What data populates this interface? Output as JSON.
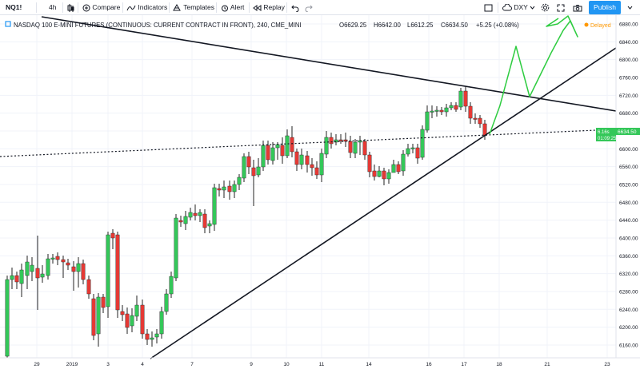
{
  "toolbar": {
    "symbol": "NQ1!",
    "interval": "4h",
    "compare_label": "Compare",
    "indicators_label": "Indicators",
    "templates_label": "Templates",
    "alert_label": "Alert",
    "replay_label": "Replay",
    "compare_symbol": "DXY",
    "publish_label": "Publish"
  },
  "legend": {
    "title": "NASDAQ 100 E-MINI FUTURES (CONTINUOUS: CURRENT CONTRACT IN FRONT), 240, CME_MINI",
    "open": "O6629.25",
    "high": "H6642.00",
    "low": "L6612.25",
    "close": "C6634.50",
    "change": "+5.25 (+0.08%)",
    "delayed": "Delayed"
  },
  "price_scale": {
    "labels": [
      "6880.00",
      "6840.00",
      "6800.00",
      "6760.00",
      "6720.00",
      "6680.00",
      "6640.00",
      "6600.00",
      "6560.00",
      "6520.00",
      "6480.00",
      "6440.00",
      "6400.00",
      "6360.00",
      "6320.00",
      "6280.00",
      "6240.00",
      "6200.00",
      "6160.00"
    ],
    "current_price": "6634.50",
    "current_symbol": "6.16s",
    "countdown": "01:09:25"
  },
  "time_scale": {
    "labels": [
      "29",
      "2019",
      "3",
      "4",
      "7",
      "9",
      "10",
      "11",
      "14",
      "16",
      "17",
      "18",
      "21",
      "23"
    ]
  },
  "colors": {
    "up": "#34c759",
    "down": "#e53935",
    "wick": "#222222",
    "drawing_green": "#2ecc40",
    "accent": "#2196f3",
    "delayed": "#ff9800"
  }
}
